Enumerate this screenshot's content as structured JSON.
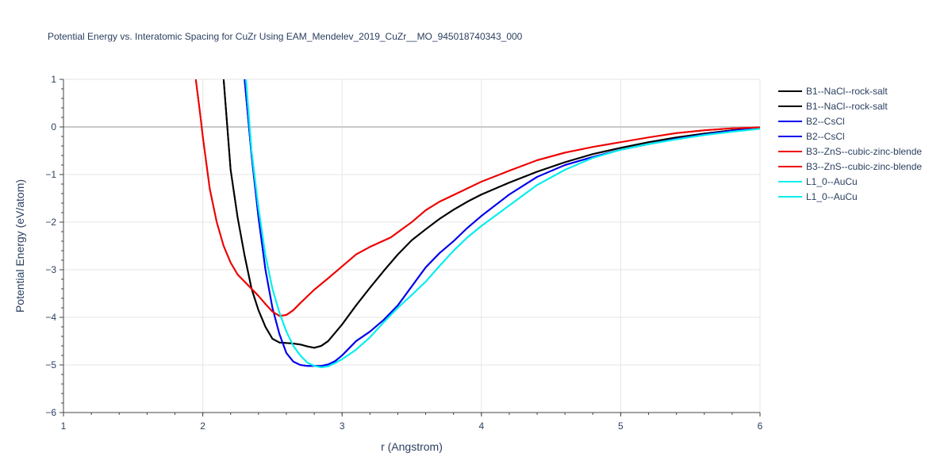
{
  "chart_data": {
    "type": "line",
    "title": "Potential Energy vs. Interatomic Spacing for CuZr Using EAM_Mendelev_2019_CuZr__MO_945018740343_000",
    "xlabel": "r (Angstrom)",
    "ylabel": "Potential Energy (eV/atom)",
    "xlim": [
      1,
      6
    ],
    "ylim": [
      -6,
      1
    ],
    "xticks": [
      1,
      2,
      3,
      4,
      5,
      6
    ],
    "xtick_labels": [
      "1",
      "2",
      "3",
      "4",
      "5",
      "6"
    ],
    "yticks": [
      -6,
      -5,
      -4,
      -3,
      -2,
      -1,
      0,
      1
    ],
    "ytick_labels": [
      "−6",
      "−5",
      "−4",
      "−3",
      "−2",
      "−1",
      "0",
      "1"
    ],
    "grid": true,
    "legend_position": "top-right",
    "series": [
      {
        "name": "B1--NaCl--rock-salt",
        "color": "#000000",
        "points": [
          [
            2.15,
            1.0
          ],
          [
            2.2,
            -0.9
          ],
          [
            2.25,
            -1.9
          ],
          [
            2.3,
            -2.7
          ],
          [
            2.35,
            -3.4
          ],
          [
            2.4,
            -3.85
          ],
          [
            2.45,
            -4.2
          ],
          [
            2.5,
            -4.45
          ],
          [
            2.55,
            -4.53
          ],
          [
            2.6,
            -4.54
          ],
          [
            2.65,
            -4.55
          ],
          [
            2.7,
            -4.57
          ],
          [
            2.75,
            -4.61
          ],
          [
            2.8,
            -4.64
          ],
          [
            2.85,
            -4.6
          ],
          [
            2.9,
            -4.5
          ],
          [
            3.0,
            -4.15
          ],
          [
            3.1,
            -3.75
          ],
          [
            3.2,
            -3.38
          ],
          [
            3.3,
            -3.02
          ],
          [
            3.4,
            -2.68
          ],
          [
            3.5,
            -2.38
          ],
          [
            3.6,
            -2.15
          ],
          [
            3.7,
            -1.93
          ],
          [
            3.8,
            -1.74
          ],
          [
            3.9,
            -1.57
          ],
          [
            4.0,
            -1.42
          ],
          [
            4.2,
            -1.17
          ],
          [
            4.4,
            -0.94
          ],
          [
            4.6,
            -0.74
          ],
          [
            4.8,
            -0.57
          ],
          [
            5.0,
            -0.44
          ],
          [
            5.2,
            -0.32
          ],
          [
            5.4,
            -0.22
          ],
          [
            5.6,
            -0.14
          ],
          [
            5.8,
            -0.07
          ],
          [
            6.0,
            -0.02
          ]
        ]
      },
      {
        "name": "B1--NaCl--rock-salt",
        "color": "#000000",
        "points": [
          [
            2.15,
            1.0
          ],
          [
            2.2,
            -0.9
          ],
          [
            2.25,
            -1.9
          ],
          [
            2.3,
            -2.7
          ],
          [
            2.35,
            -3.4
          ],
          [
            2.4,
            -3.85
          ],
          [
            2.45,
            -4.2
          ],
          [
            2.5,
            -4.45
          ],
          [
            2.55,
            -4.53
          ],
          [
            2.6,
            -4.54
          ],
          [
            2.65,
            -4.55
          ],
          [
            2.7,
            -4.57
          ],
          [
            2.75,
            -4.61
          ],
          [
            2.8,
            -4.64
          ],
          [
            2.85,
            -4.6
          ],
          [
            2.9,
            -4.5
          ],
          [
            3.0,
            -4.15
          ],
          [
            3.1,
            -3.75
          ],
          [
            3.2,
            -3.38
          ],
          [
            3.3,
            -3.02
          ],
          [
            3.4,
            -2.68
          ],
          [
            3.5,
            -2.38
          ],
          [
            3.6,
            -2.15
          ],
          [
            3.7,
            -1.93
          ],
          [
            3.8,
            -1.74
          ],
          [
            3.9,
            -1.57
          ],
          [
            4.0,
            -1.42
          ],
          [
            4.2,
            -1.17
          ],
          [
            4.4,
            -0.94
          ],
          [
            4.6,
            -0.74
          ],
          [
            4.8,
            -0.57
          ],
          [
            5.0,
            -0.44
          ],
          [
            5.2,
            -0.32
          ],
          [
            5.4,
            -0.22
          ],
          [
            5.6,
            -0.14
          ],
          [
            5.8,
            -0.07
          ],
          [
            6.0,
            -0.02
          ]
        ]
      },
      {
        "name": "B2--CsCl",
        "color": "#0000ee",
        "points": [
          [
            2.3,
            1.0
          ],
          [
            2.35,
            -0.6
          ],
          [
            2.4,
            -1.9
          ],
          [
            2.45,
            -3.0
          ],
          [
            2.5,
            -3.8
          ],
          [
            2.55,
            -4.35
          ],
          [
            2.6,
            -4.75
          ],
          [
            2.65,
            -4.93
          ],
          [
            2.7,
            -5.0
          ],
          [
            2.75,
            -5.02
          ],
          [
            2.8,
            -5.02
          ],
          [
            2.85,
            -5.02
          ],
          [
            2.9,
            -4.99
          ],
          [
            2.95,
            -4.92
          ],
          [
            3.0,
            -4.8
          ],
          [
            3.1,
            -4.5
          ],
          [
            3.2,
            -4.3
          ],
          [
            3.3,
            -4.05
          ],
          [
            3.4,
            -3.75
          ],
          [
            3.5,
            -3.35
          ],
          [
            3.6,
            -2.95
          ],
          [
            3.7,
            -2.65
          ],
          [
            3.8,
            -2.4
          ],
          [
            3.9,
            -2.12
          ],
          [
            4.0,
            -1.87
          ],
          [
            4.2,
            -1.42
          ],
          [
            4.4,
            -1.05
          ],
          [
            4.6,
            -0.8
          ],
          [
            4.8,
            -0.63
          ],
          [
            5.0,
            -0.48
          ],
          [
            5.2,
            -0.36
          ],
          [
            5.4,
            -0.25
          ],
          [
            5.6,
            -0.16
          ],
          [
            5.8,
            -0.08
          ],
          [
            6.0,
            -0.02
          ]
        ]
      },
      {
        "name": "B2--CsCl",
        "color": "#0000ee",
        "points": [
          [
            2.3,
            1.0
          ],
          [
            2.35,
            -0.6
          ],
          [
            2.4,
            -1.9
          ],
          [
            2.45,
            -3.0
          ],
          [
            2.5,
            -3.8
          ],
          [
            2.55,
            -4.35
          ],
          [
            2.6,
            -4.75
          ],
          [
            2.65,
            -4.93
          ],
          [
            2.7,
            -5.0
          ],
          [
            2.75,
            -5.02
          ],
          [
            2.8,
            -5.02
          ],
          [
            2.85,
            -5.02
          ],
          [
            2.9,
            -4.99
          ],
          [
            2.95,
            -4.92
          ],
          [
            3.0,
            -4.8
          ],
          [
            3.1,
            -4.5
          ],
          [
            3.2,
            -4.3
          ],
          [
            3.3,
            -4.05
          ],
          [
            3.4,
            -3.75
          ],
          [
            3.5,
            -3.35
          ],
          [
            3.6,
            -2.95
          ],
          [
            3.7,
            -2.65
          ],
          [
            3.8,
            -2.4
          ],
          [
            3.9,
            -2.12
          ],
          [
            4.0,
            -1.87
          ],
          [
            4.2,
            -1.42
          ],
          [
            4.4,
            -1.05
          ],
          [
            4.6,
            -0.8
          ],
          [
            4.8,
            -0.63
          ],
          [
            5.0,
            -0.48
          ],
          [
            5.2,
            -0.36
          ],
          [
            5.4,
            -0.25
          ],
          [
            5.6,
            -0.16
          ],
          [
            5.8,
            -0.08
          ],
          [
            6.0,
            -0.02
          ]
        ]
      },
      {
        "name": "B3--ZnS--cubic-zinc-blende",
        "color": "#ee0000",
        "points": [
          [
            1.95,
            1.0
          ],
          [
            1.98,
            0.3
          ],
          [
            2.0,
            -0.2
          ],
          [
            2.05,
            -1.3
          ],
          [
            2.1,
            -2.0
          ],
          [
            2.15,
            -2.5
          ],
          [
            2.2,
            -2.85
          ],
          [
            2.25,
            -3.1
          ],
          [
            2.3,
            -3.25
          ],
          [
            2.35,
            -3.4
          ],
          [
            2.4,
            -3.55
          ],
          [
            2.45,
            -3.72
          ],
          [
            2.5,
            -3.88
          ],
          [
            2.55,
            -3.97
          ],
          [
            2.6,
            -3.95
          ],
          [
            2.65,
            -3.85
          ],
          [
            2.7,
            -3.7
          ],
          [
            2.8,
            -3.42
          ],
          [
            2.9,
            -3.18
          ],
          [
            3.0,
            -2.93
          ],
          [
            3.1,
            -2.68
          ],
          [
            3.2,
            -2.52
          ],
          [
            3.35,
            -2.32
          ],
          [
            3.5,
            -2.0
          ],
          [
            3.6,
            -1.75
          ],
          [
            3.7,
            -1.57
          ],
          [
            3.8,
            -1.43
          ],
          [
            4.0,
            -1.15
          ],
          [
            4.2,
            -0.92
          ],
          [
            4.4,
            -0.7
          ],
          [
            4.6,
            -0.54
          ],
          [
            4.8,
            -0.42
          ],
          [
            5.0,
            -0.32
          ],
          [
            5.2,
            -0.22
          ],
          [
            5.4,
            -0.13
          ],
          [
            5.6,
            -0.07
          ],
          [
            5.8,
            -0.03
          ],
          [
            6.0,
            -0.01
          ]
        ]
      },
      {
        "name": "B3--ZnS--cubic-zinc-blende",
        "color": "#ee0000",
        "points": [
          [
            1.95,
            1.0
          ],
          [
            1.98,
            0.3
          ],
          [
            2.0,
            -0.2
          ],
          [
            2.05,
            -1.3
          ],
          [
            2.1,
            -2.0
          ],
          [
            2.15,
            -2.5
          ],
          [
            2.2,
            -2.85
          ],
          [
            2.25,
            -3.1
          ],
          [
            2.3,
            -3.25
          ],
          [
            2.35,
            -3.4
          ],
          [
            2.4,
            -3.55
          ],
          [
            2.45,
            -3.72
          ],
          [
            2.5,
            -3.88
          ],
          [
            2.55,
            -3.97
          ],
          [
            2.6,
            -3.95
          ],
          [
            2.65,
            -3.85
          ],
          [
            2.7,
            -3.7
          ],
          [
            2.8,
            -3.42
          ],
          [
            2.9,
            -3.18
          ],
          [
            3.0,
            -2.93
          ],
          [
            3.1,
            -2.68
          ],
          [
            3.2,
            -2.52
          ],
          [
            3.35,
            -2.32
          ],
          [
            3.5,
            -2.0
          ],
          [
            3.6,
            -1.75
          ],
          [
            3.7,
            -1.57
          ],
          [
            3.8,
            -1.43
          ],
          [
            4.0,
            -1.15
          ],
          [
            4.2,
            -0.92
          ],
          [
            4.4,
            -0.7
          ],
          [
            4.6,
            -0.54
          ],
          [
            4.8,
            -0.42
          ],
          [
            5.0,
            -0.32
          ],
          [
            5.2,
            -0.22
          ],
          [
            5.4,
            -0.13
          ],
          [
            5.6,
            -0.07
          ],
          [
            5.8,
            -0.03
          ],
          [
            6.0,
            -0.01
          ]
        ]
      },
      {
        "name": "L1_0--AuCu",
        "color": "#00eeee",
        "points": [
          [
            2.31,
            1.0
          ],
          [
            2.35,
            -0.5
          ],
          [
            2.4,
            -1.7
          ],
          [
            2.45,
            -2.7
          ],
          [
            2.5,
            -3.4
          ],
          [
            2.55,
            -3.9
          ],
          [
            2.6,
            -4.3
          ],
          [
            2.65,
            -4.6
          ],
          [
            2.7,
            -4.8
          ],
          [
            2.75,
            -4.95
          ],
          [
            2.8,
            -5.02
          ],
          [
            2.85,
            -5.05
          ],
          [
            2.9,
            -5.03
          ],
          [
            2.95,
            -4.96
          ],
          [
            3.0,
            -4.88
          ],
          [
            3.1,
            -4.68
          ],
          [
            3.2,
            -4.42
          ],
          [
            3.3,
            -4.1
          ],
          [
            3.4,
            -3.8
          ],
          [
            3.5,
            -3.53
          ],
          [
            3.6,
            -3.25
          ],
          [
            3.7,
            -2.92
          ],
          [
            3.8,
            -2.6
          ],
          [
            3.9,
            -2.32
          ],
          [
            4.0,
            -2.08
          ],
          [
            4.2,
            -1.65
          ],
          [
            4.4,
            -1.22
          ],
          [
            4.6,
            -0.9
          ],
          [
            4.8,
            -0.65
          ],
          [
            5.0,
            -0.48
          ],
          [
            5.2,
            -0.36
          ],
          [
            5.4,
            -0.26
          ],
          [
            5.6,
            -0.17
          ],
          [
            5.8,
            -0.1
          ],
          [
            6.0,
            -0.04
          ]
        ]
      },
      {
        "name": "L1_0--AuCu",
        "color": "#00eeee",
        "points": [
          [
            2.31,
            1.0
          ],
          [
            2.35,
            -0.5
          ],
          [
            2.4,
            -1.7
          ],
          [
            2.45,
            -2.7
          ],
          [
            2.5,
            -3.4
          ],
          [
            2.55,
            -3.9
          ],
          [
            2.6,
            -4.3
          ],
          [
            2.65,
            -4.6
          ],
          [
            2.7,
            -4.8
          ],
          [
            2.75,
            -4.95
          ],
          [
            2.8,
            -5.02
          ],
          [
            2.85,
            -5.05
          ],
          [
            2.9,
            -5.03
          ],
          [
            2.95,
            -4.96
          ],
          [
            3.0,
            -4.88
          ],
          [
            3.1,
            -4.68
          ],
          [
            3.2,
            -4.42
          ],
          [
            3.3,
            -4.1
          ],
          [
            3.4,
            -3.8
          ],
          [
            3.5,
            -3.53
          ],
          [
            3.6,
            -3.25
          ],
          [
            3.7,
            -2.92
          ],
          [
            3.8,
            -2.6
          ],
          [
            3.9,
            -2.32
          ],
          [
            4.0,
            -2.08
          ],
          [
            4.2,
            -1.65
          ],
          [
            4.4,
            -1.22
          ],
          [
            4.6,
            -0.9
          ],
          [
            4.8,
            -0.65
          ],
          [
            5.0,
            -0.48
          ],
          [
            5.2,
            -0.36
          ],
          [
            5.4,
            -0.26
          ],
          [
            5.6,
            -0.17
          ],
          [
            5.8,
            -0.1
          ],
          [
            6.0,
            -0.04
          ]
        ]
      }
    ]
  }
}
